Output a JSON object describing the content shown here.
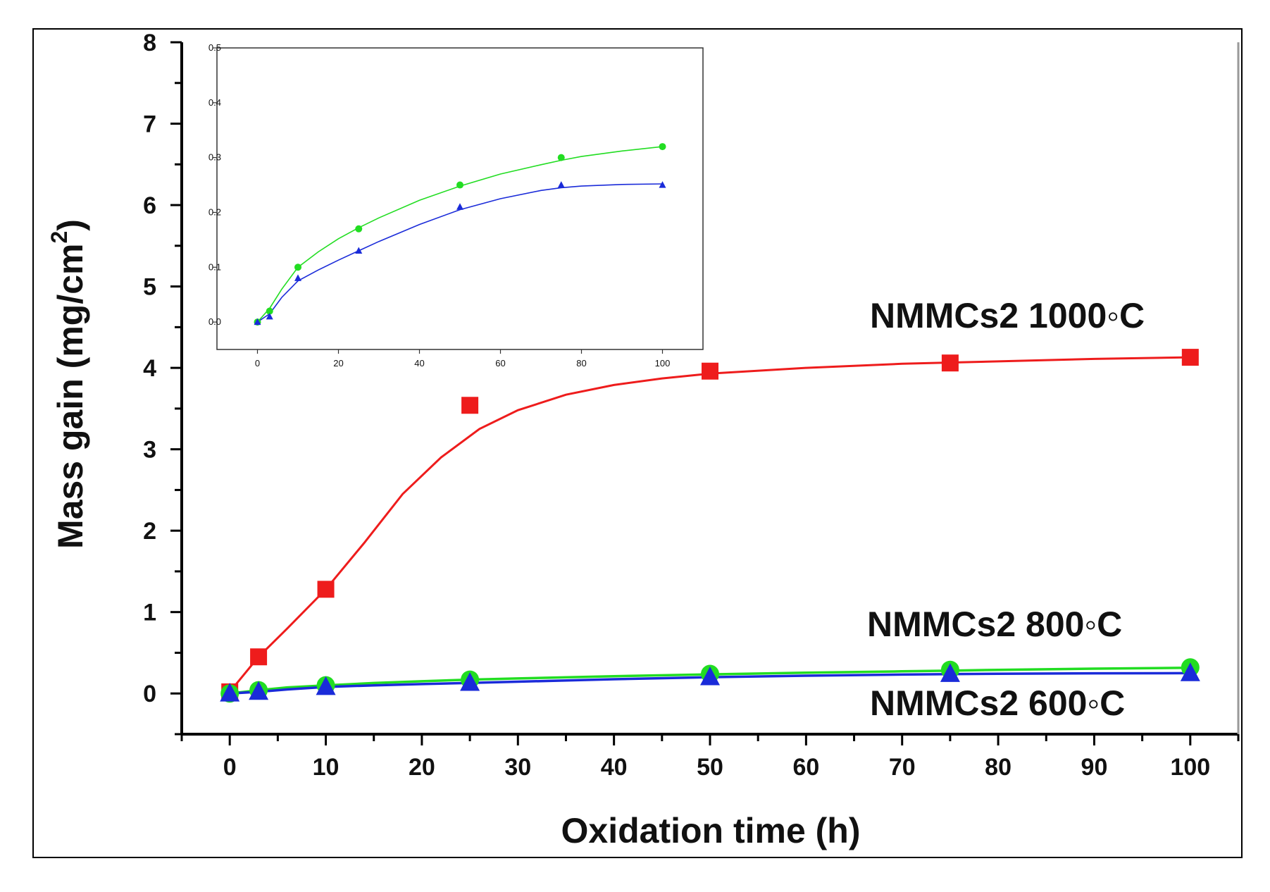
{
  "chart_data": [
    {
      "id": "main",
      "type": "scatter",
      "xlabel": "Oxidation time (h)",
      "ylabel_text": "Mass gain (mg/cm",
      "ylabel_sup": "2",
      "ylabel_close": ")",
      "xlim": [
        -5,
        105
      ],
      "ylim": [
        -0.5,
        8
      ],
      "xticks": [
        "0",
        "10",
        "20",
        "30",
        "40",
        "50",
        "60",
        "70",
        "80",
        "90",
        "100"
      ],
      "yticks": [
        "0",
        "1",
        "2",
        "3",
        "4",
        "5",
        "6",
        "7",
        "8"
      ],
      "series": [
        {
          "name": "NMMCs2 1000◦C",
          "marker": "square",
          "color": "#ee1c1c",
          "x": [
            0,
            3,
            10,
            25,
            50,
            75,
            100
          ],
          "y": [
            0.02,
            0.45,
            1.28,
            3.54,
            3.96,
            4.06,
            4.13
          ],
          "fit_x": [
            0,
            3,
            6,
            10,
            14,
            18,
            22,
            26,
            30,
            35,
            40,
            45,
            50,
            60,
            70,
            80,
            90,
            100
          ],
          "fit_y": [
            0.02,
            0.45,
            0.8,
            1.28,
            1.85,
            2.45,
            2.9,
            3.25,
            3.48,
            3.67,
            3.79,
            3.87,
            3.93,
            4.0,
            4.05,
            4.08,
            4.11,
            4.13
          ]
        },
        {
          "name": "NMMCs2 800◦C",
          "marker": "circle",
          "color": "#22dd22",
          "x": [
            0,
            3,
            10,
            25,
            50,
            75,
            100
          ],
          "y": [
            0.0,
            0.04,
            0.1,
            0.17,
            0.24,
            0.29,
            0.32
          ],
          "fit_x": [
            0,
            3,
            6,
            10,
            15,
            20,
            25,
            30,
            40,
            50,
            60,
            70,
            75,
            80,
            90,
            100
          ],
          "fit_y": [
            0.0,
            0.04,
            0.075,
            0.1,
            0.128,
            0.15,
            0.17,
            0.185,
            0.212,
            0.235,
            0.255,
            0.272,
            0.28,
            0.29,
            0.305,
            0.315
          ]
        },
        {
          "name": "NMMCs2 600◦C",
          "marker": "triangle",
          "color": "#1a2bd9",
          "x": [
            0,
            3,
            10,
            25,
            50,
            75,
            100
          ],
          "y": [
            0.0,
            0.02,
            0.08,
            0.13,
            0.2,
            0.24,
            0.25
          ],
          "fit_x": [
            0,
            3,
            6,
            10,
            15,
            20,
            25,
            30,
            40,
            50,
            60,
            70,
            75,
            80,
            90,
            100
          ],
          "fit_y": [
            0.0,
            0.02,
            0.05,
            0.08,
            0.1,
            0.115,
            0.13,
            0.145,
            0.175,
            0.2,
            0.218,
            0.232,
            0.238,
            0.243,
            0.248,
            0.25
          ]
        }
      ]
    },
    {
      "id": "inset",
      "type": "scatter",
      "xlim": [
        -10,
        110
      ],
      "ylim": [
        -0.05,
        0.5
      ],
      "xticks": [
        "0",
        "20",
        "40",
        "60",
        "80",
        "100"
      ],
      "yticks": [
        "0.0",
        "0.1",
        "0.2",
        "0.3",
        "0.4",
        "0.5"
      ],
      "series": [
        {
          "name": "NMMCs2 800◦C",
          "marker": "circle",
          "color": "#22dd22",
          "x": [
            0,
            3,
            10,
            25,
            50,
            75,
            100
          ],
          "y": [
            0.0,
            0.02,
            0.1,
            0.17,
            0.25,
            0.3,
            0.32
          ],
          "fit_x": [
            0,
            3,
            6,
            10,
            15,
            20,
            25,
            30,
            40,
            50,
            60,
            70,
            75,
            80,
            90,
            100
          ],
          "fit_y": [
            0.0,
            0.025,
            0.06,
            0.1,
            0.128,
            0.152,
            0.172,
            0.19,
            0.222,
            0.248,
            0.27,
            0.287,
            0.295,
            0.302,
            0.312,
            0.32
          ]
        },
        {
          "name": "NMMCs2 600◦C",
          "marker": "triangle",
          "color": "#1a2bd9",
          "x": [
            0,
            3,
            10,
            25,
            50,
            75,
            100
          ],
          "y": [
            0.0,
            0.01,
            0.08,
            0.13,
            0.21,
            0.25,
            0.25
          ],
          "fit_x": [
            0,
            3,
            6,
            10,
            15,
            20,
            25,
            30,
            40,
            50,
            60,
            70,
            75,
            80,
            90,
            100
          ],
          "fit_y": [
            0.0,
            0.015,
            0.045,
            0.075,
            0.095,
            0.113,
            0.13,
            0.147,
            0.178,
            0.205,
            0.225,
            0.24,
            0.245,
            0.248,
            0.251,
            0.252
          ]
        }
      ]
    }
  ]
}
